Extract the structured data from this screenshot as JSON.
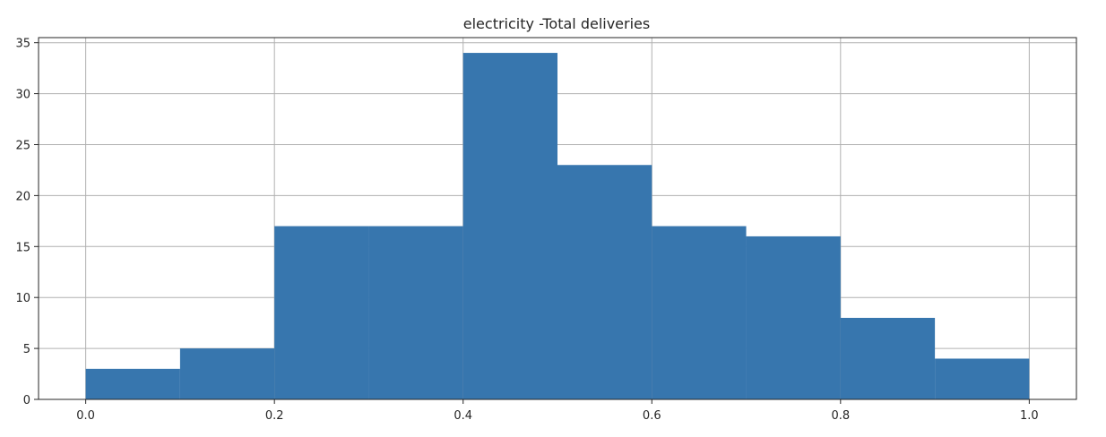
{
  "chart_data": {
    "type": "bar",
    "subtype": "histogram",
    "title": "electricity -Total deliveries",
    "xlabel": "",
    "ylabel": "",
    "bin_edges": [
      0.0,
      0.1,
      0.2,
      0.3,
      0.4,
      0.5,
      0.6,
      0.7,
      0.8,
      0.9,
      1.0
    ],
    "values": [
      3,
      5,
      17,
      17,
      34,
      23,
      17,
      16,
      8,
      4
    ],
    "xlim": [
      -0.05,
      1.05
    ],
    "ylim": [
      0,
      35.5
    ],
    "x_ticks": [
      "0.0",
      "0.2",
      "0.4",
      "0.6",
      "0.8",
      "1.0"
    ],
    "x_tick_values": [
      0.0,
      0.2,
      0.4,
      0.6,
      0.8,
      1.0
    ],
    "y_ticks": [
      "0",
      "5",
      "10",
      "15",
      "20",
      "25",
      "30",
      "35"
    ],
    "y_tick_values": [
      0,
      5,
      10,
      15,
      20,
      25,
      30,
      35
    ],
    "grid": true,
    "bar_color": "#3776ae",
    "grid_color": "#b0b0b0"
  }
}
